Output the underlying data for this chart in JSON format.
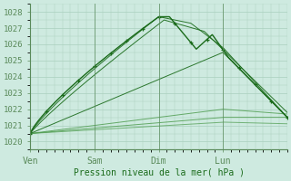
{
  "bg_color": "#ceeae0",
  "grid_color": "#aacfbe",
  "line_color_main": "#1a6b1a",
  "line_color_light": "#4a9a4a",
  "ylabel_ticks": [
    1020,
    1021,
    1022,
    1023,
    1024,
    1025,
    1026,
    1027,
    1028
  ],
  "xtick_positions": [
    0,
    24,
    48,
    72
  ],
  "xtick_labels": [
    "Ven",
    "Sam",
    "Dim",
    "Lun"
  ],
  "xlabel": "Pression niveau de la mer( hPa )",
  "ylim": [
    1019.5,
    1028.5
  ],
  "xlim": [
    0,
    96
  ]
}
